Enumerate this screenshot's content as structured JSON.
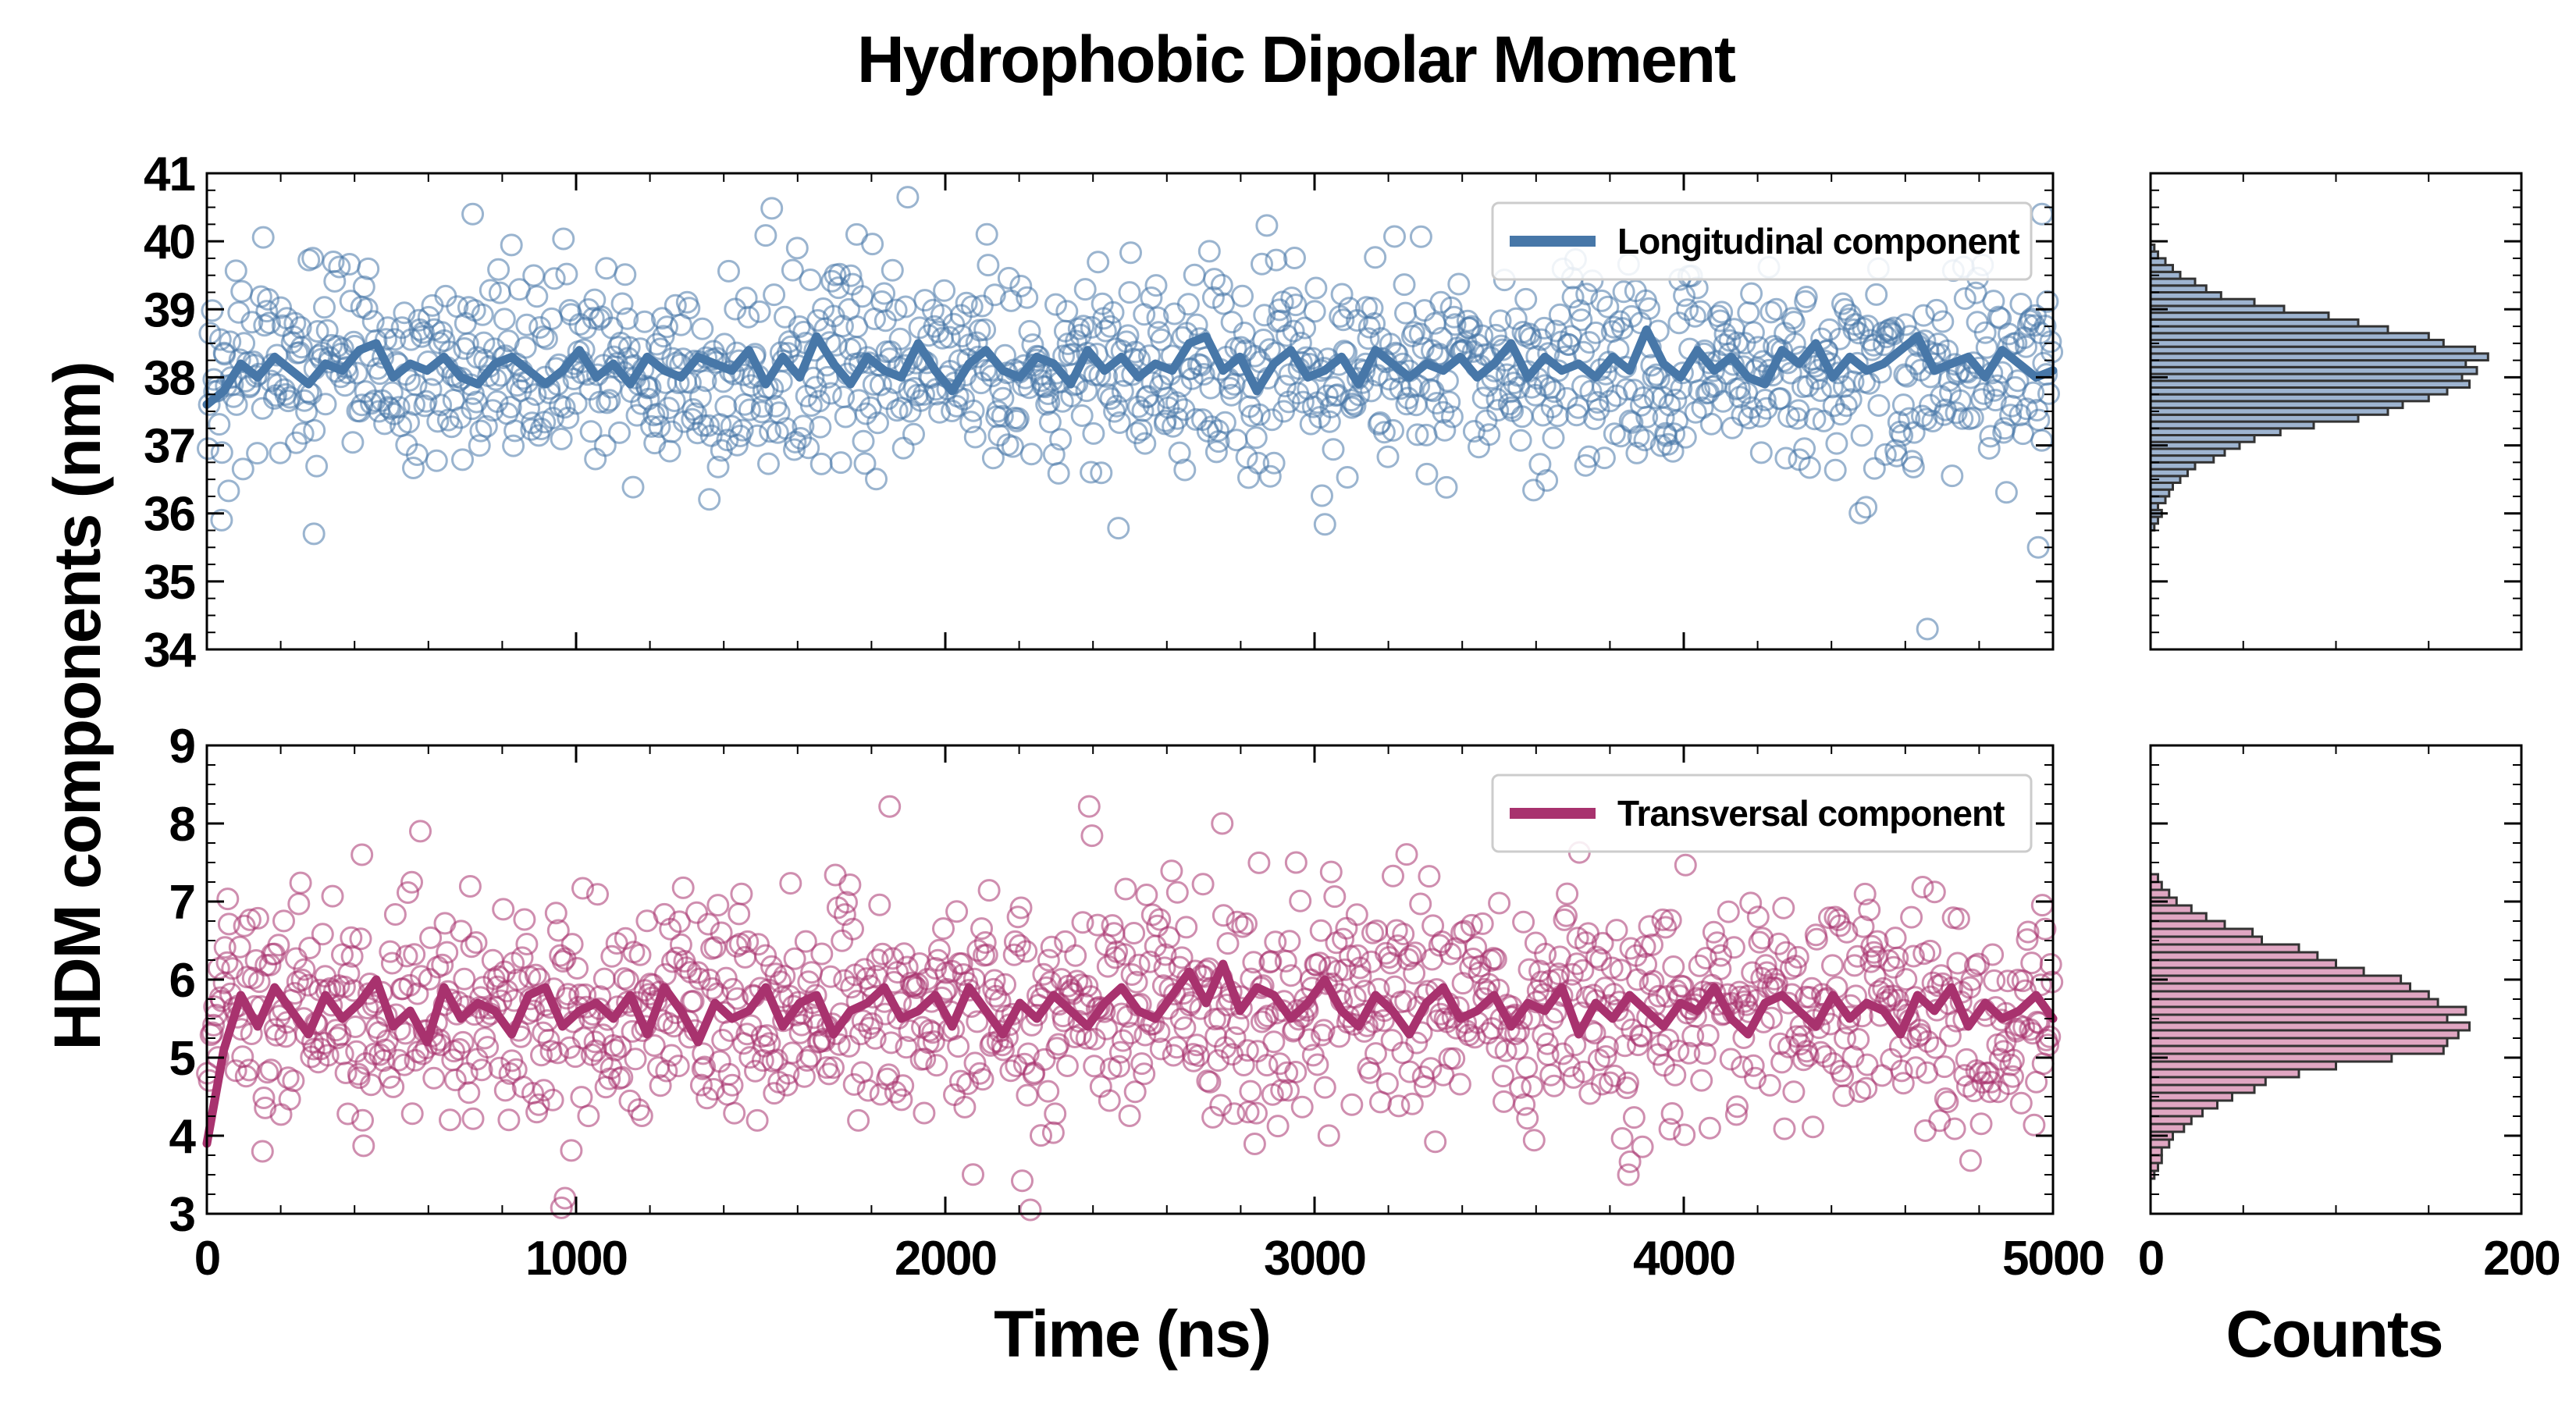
{
  "figure": {
    "title": "Hydrophobic Dipolar Moment",
    "shared_ylabel": "HDM components (nm)",
    "xlabel_time": "Time (ns)",
    "xlabel_counts": "Counts"
  },
  "chart_data": [
    {
      "type": "scatter",
      "panel": "longitudinal-timeseries",
      "legend": "Longitudinal component",
      "legend_position": "top-right",
      "color": "#4777a8",
      "xlim": [
        0,
        5000
      ],
      "ylim": [
        34,
        41
      ],
      "xticks": [
        0,
        1000,
        2000,
        3000,
        4000,
        5000
      ],
      "yticks": [
        34,
        35,
        36,
        37,
        38,
        39,
        40,
        41
      ],
      "scatter_summary": {
        "n_points": 1250,
        "mean": 38.1,
        "std": 0.75
      },
      "outliers": [
        {
          "x": 720,
          "y": 40.4
        },
        {
          "x": 1760,
          "y": 40.1
        },
        {
          "x": 4660,
          "y": 34.3
        },
        {
          "x": 4960,
          "y": 35.5
        },
        {
          "x": 4970,
          "y": 40.4
        },
        {
          "x": 290,
          "y": 35.7
        },
        {
          "x": 40,
          "y": 35.9
        }
      ],
      "running_average": [
        37.6,
        37.8,
        38.2,
        38,
        38.3,
        38.1,
        37.9,
        38.2,
        38.1,
        38.4,
        38.5,
        38,
        38.2,
        38.1,
        38.3,
        38,
        37.9,
        38.2,
        38.3,
        38.1,
        37.9,
        38.1,
        38.4,
        38,
        38.2,
        37.9,
        38.3,
        38.1,
        38,
        38.3,
        38.2,
        38.1,
        38.4,
        37.9,
        38.3,
        38,
        38.6,
        38.2,
        37.9,
        38.3,
        38.1,
        38,
        38.5,
        38.1,
        37.8,
        38.2,
        38.4,
        38.1,
        38,
        38.3,
        38.2,
        37.9,
        38.4,
        38.1,
        38.3,
        38,
        38.2,
        38.1,
        38.5,
        38.6,
        38.1,
        38.3,
        37.8,
        38.2,
        38.4,
        38,
        38.1,
        38.3,
        37.9,
        38.4,
        38.2,
        38,
        38.2,
        38.1,
        38.3,
        38,
        38.2,
        38.5,
        38,
        38.3,
        38.1,
        38.2,
        38,
        38.3,
        38.1,
        38.7,
        38.2,
        38,
        38.4,
        38.1,
        38.3,
        38,
        37.9,
        38.4,
        38.2,
        38.5,
        38,
        38.3,
        38.1,
        38.2,
        38.4,
        38.6,
        38.1,
        38.2,
        38.3,
        38,
        38.4,
        38.2,
        38,
        38.1
      ]
    },
    {
      "type": "scatter",
      "panel": "transversal-timeseries",
      "legend": "Transversal component",
      "legend_position": "top-right",
      "color": "#a8326e",
      "xlim": [
        0,
        5000
      ],
      "ylim": [
        3,
        9
      ],
      "xticks": [
        0,
        1000,
        2000,
        3000,
        4000,
        5000
      ],
      "yticks": [
        3,
        4,
        5,
        6,
        7,
        8,
        9
      ],
      "scatter_summary": {
        "n_points": 1250,
        "mean": 5.6,
        "std": 0.75
      },
      "outliers": [
        {
          "x": 2750,
          "y": 8.0
        },
        {
          "x": 970,
          "y": 3.2
        },
        {
          "x": 3850,
          "y": 3.5
        },
        {
          "x": 420,
          "y": 7.6
        },
        {
          "x": 2950,
          "y": 7.5
        }
      ],
      "running_average": [
        3.9,
        5.1,
        5.8,
        5.4,
        5.9,
        5.6,
        5.3,
        5.8,
        5.5,
        5.7,
        6,
        5.4,
        5.6,
        5.2,
        5.9,
        5.5,
        5.7,
        5.6,
        5.3,
        5.8,
        5.9,
        5.4,
        5.6,
        5.7,
        5.5,
        5.8,
        5.3,
        5.9,
        5.6,
        5.2,
        5.7,
        5.5,
        5.6,
        5.9,
        5.4,
        5.7,
        5.8,
        5.3,
        5.6,
        5.7,
        5.9,
        5.5,
        5.6,
        5.8,
        5.4,
        5.9,
        5.6,
        5.3,
        5.7,
        5.5,
        5.8,
        5.6,
        5.4,
        5.7,
        5.9,
        5.6,
        5.5,
        5.8,
        6.1,
        5.7,
        6.2,
        5.6,
        5.9,
        5.8,
        5.5,
        5.7,
        6,
        5.6,
        5.4,
        5.8,
        5.6,
        5.3,
        5.7,
        5.9,
        5.5,
        5.6,
        5.8,
        5.4,
        5.7,
        5.6,
        5.9,
        5.3,
        5.7,
        5.5,
        5.8,
        5.6,
        5.4,
        5.7,
        5.6,
        5.9,
        5.5,
        5.3,
        5.7,
        5.8,
        5.6,
        5.4,
        5.8,
        5.5,
        5.7,
        5.6,
        5.3,
        5.8,
        5.6,
        5.9,
        5.4,
        5.7,
        5.5,
        5.6,
        5.8,
        5.5
      ]
    },
    {
      "type": "bar",
      "orientation": "horizontal",
      "panel": "longitudinal-histogram",
      "color": "#9eb4d0",
      "edgecolor": "#333333",
      "xlim": [
        0,
        200
      ],
      "ylim": [
        34,
        41
      ],
      "bins": [
        35.8,
        35.9,
        36,
        36.1,
        36.2,
        36.3,
        36.4,
        36.5,
        36.6,
        36.7,
        36.8,
        36.9,
        37,
        37.1,
        37.2,
        37.3,
        37.4,
        37.5,
        37.6,
        37.7,
        37.8,
        37.9,
        38,
        38.1,
        38.2,
        38.3,
        38.4,
        38.5,
        38.6,
        38.7,
        38.8,
        38.9,
        39,
        39.1,
        39.2,
        39.3,
        39.4,
        39.5,
        39.6,
        39.7,
        39.8,
        39.9
      ],
      "counts": [
        2,
        4,
        6,
        4,
        8,
        10,
        12,
        16,
        20,
        24,
        34,
        40,
        48,
        56,
        70,
        88,
        112,
        128,
        136,
        150,
        160,
        172,
        168,
        176,
        170,
        182,
        175,
        158,
        150,
        128,
        112,
        96,
        72,
        56,
        38,
        30,
        24,
        16,
        12,
        8,
        4,
        2
      ]
    },
    {
      "type": "bar",
      "orientation": "horizontal",
      "panel": "transversal-histogram",
      "color": "#e0a6c2",
      "edgecolor": "#333333",
      "xlim": [
        0,
        200
      ],
      "ylim": [
        3,
        9
      ],
      "bins": [
        3.5,
        3.6,
        3.7,
        3.8,
        3.9,
        4,
        4.1,
        4.2,
        4.3,
        4.4,
        4.5,
        4.6,
        4.7,
        4.8,
        4.9,
        5,
        5.1,
        5.2,
        5.3,
        5.4,
        5.5,
        5.6,
        5.7,
        5.8,
        5.9,
        6,
        6.1,
        6.2,
        6.3,
        6.4,
        6.5,
        6.6,
        6.7,
        6.8,
        6.9,
        7,
        7.1,
        7.2,
        7.3
      ],
      "counts": [
        2,
        4,
        6,
        6,
        10,
        12,
        18,
        22,
        28,
        36,
        44,
        56,
        62,
        80,
        100,
        130,
        158,
        160,
        166,
        172,
        160,
        170,
        155,
        150,
        140,
        135,
        115,
        100,
        90,
        80,
        60,
        55,
        40,
        30,
        22,
        14,
        10,
        6,
        4
      ]
    }
  ]
}
